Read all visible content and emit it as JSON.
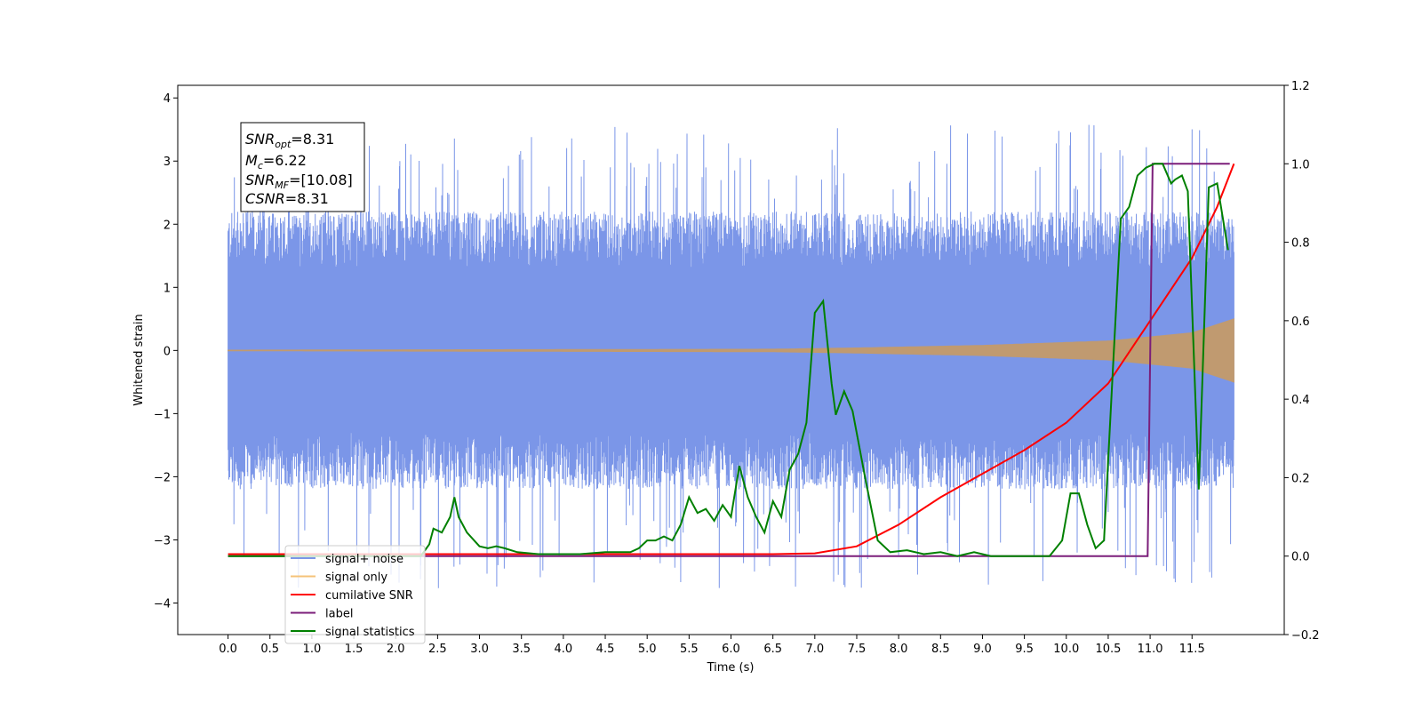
{
  "chart_data": {
    "type": "line",
    "xlabel": "Time (s)",
    "ylabel": "Whitened strain",
    "xlim": [
      -0.6,
      12.6
    ],
    "ylim": [
      -4.5,
      4.2
    ],
    "y2lim": [
      -0.2,
      1.2
    ],
    "x_ticks": [
      "0.0",
      "0.5",
      "1.0",
      "1.5",
      "2.0",
      "2.5",
      "3.0",
      "3.5",
      "4.0",
      "4.5",
      "5.0",
      "5.5",
      "6.0",
      "6.5",
      "7.0",
      "7.5",
      "8.0",
      "8.5",
      "9.0",
      "9.5",
      "10.0",
      "10.5",
      "11.0",
      "11.5"
    ],
    "y_ticks": [
      "−4",
      "−3",
      "−2",
      "−1",
      "0",
      "1",
      "2",
      "3",
      "4"
    ],
    "y2_ticks": [
      "−0.2",
      "0.0",
      "0.2",
      "0.4",
      "0.6",
      "0.8",
      "1.0",
      "1.2"
    ],
    "grid": false,
    "legend_position": "lower-left",
    "stats_box": {
      "lines": [
        {
          "main": "SNR",
          "sub": "opt",
          "rest": "=8.31"
        },
        {
          "main": "M",
          "sub": "c",
          "rest": "=6.22"
        },
        {
          "main": "SNR",
          "sub": "MF",
          "rest": "=[10.08]"
        },
        {
          "main": "CSNR",
          "sub": "",
          "rest": "=8.31"
        }
      ]
    },
    "series": [
      {
        "name": "signal+ noise",
        "color": "#7b96e8",
        "axis": "left",
        "style": "noise band, roughly ±1.5 envelope with spikes up to ±4",
        "duration": 12.0
      },
      {
        "name": "signal only",
        "color": "#c09a70",
        "axis": "left",
        "style": "chirp with growing amplitude",
        "amplitude": [
          [
            0,
            0.005
          ],
          [
            6.5,
            0.02
          ],
          [
            7.5,
            0.04
          ],
          [
            9.0,
            0.08
          ],
          [
            10.5,
            0.15
          ],
          [
            11.5,
            0.28
          ],
          [
            12.0,
            0.5
          ]
        ]
      },
      {
        "name": "cumilative SNR",
        "color": "#ff0000",
        "axis": "right",
        "points": [
          [
            0,
            0.005
          ],
          [
            6.5,
            0.005
          ],
          [
            7.0,
            0.007
          ],
          [
            7.5,
            0.025
          ],
          [
            8.0,
            0.08
          ],
          [
            8.5,
            0.15
          ],
          [
            9.0,
            0.21
          ],
          [
            9.5,
            0.27
          ],
          [
            10.0,
            0.34
          ],
          [
            10.5,
            0.44
          ],
          [
            11.0,
            0.6
          ],
          [
            11.5,
            0.76
          ],
          [
            11.8,
            0.89
          ],
          [
            12.0,
            1.0
          ]
        ]
      },
      {
        "name": "label",
        "color": "#7b1e7a",
        "axis": "right",
        "points": [
          [
            0,
            0
          ],
          [
            10.97,
            0
          ],
          [
            11.03,
            1.0
          ],
          [
            11.95,
            1.0
          ]
        ]
      },
      {
        "name": "signal statistics",
        "color": "#008000",
        "axis": "right",
        "points": [
          [
            0,
            0.0
          ],
          [
            2.3,
            0.0
          ],
          [
            2.4,
            0.03
          ],
          [
            2.45,
            0.07
          ],
          [
            2.55,
            0.06
          ],
          [
            2.65,
            0.1
          ],
          [
            2.7,
            0.15
          ],
          [
            2.75,
            0.1
          ],
          [
            2.85,
            0.06
          ],
          [
            3.0,
            0.025
          ],
          [
            3.1,
            0.02
          ],
          [
            3.2,
            0.025
          ],
          [
            3.3,
            0.02
          ],
          [
            3.45,
            0.01
          ],
          [
            3.7,
            0.005
          ],
          [
            4.2,
            0.005
          ],
          [
            4.5,
            0.01
          ],
          [
            4.8,
            0.01
          ],
          [
            4.9,
            0.02
          ],
          [
            5.0,
            0.04
          ],
          [
            5.1,
            0.04
          ],
          [
            5.2,
            0.05
          ],
          [
            5.3,
            0.04
          ],
          [
            5.4,
            0.08
          ],
          [
            5.5,
            0.15
          ],
          [
            5.6,
            0.11
          ],
          [
            5.7,
            0.12
          ],
          [
            5.8,
            0.09
          ],
          [
            5.9,
            0.13
          ],
          [
            6.0,
            0.1
          ],
          [
            6.1,
            0.23
          ],
          [
            6.2,
            0.15
          ],
          [
            6.3,
            0.1
          ],
          [
            6.4,
            0.06
          ],
          [
            6.5,
            0.14
          ],
          [
            6.6,
            0.1
          ],
          [
            6.7,
            0.22
          ],
          [
            6.8,
            0.26
          ],
          [
            6.9,
            0.34
          ],
          [
            7.0,
            0.62
          ],
          [
            7.1,
            0.65
          ],
          [
            7.2,
            0.44
          ],
          [
            7.25,
            0.36
          ],
          [
            7.35,
            0.42
          ],
          [
            7.45,
            0.37
          ],
          [
            7.6,
            0.2
          ],
          [
            7.75,
            0.04
          ],
          [
            7.9,
            0.01
          ],
          [
            8.1,
            0.015
          ],
          [
            8.3,
            0.005
          ],
          [
            8.5,
            0.01
          ],
          [
            8.7,
            0.0
          ],
          [
            8.9,
            0.01
          ],
          [
            9.1,
            0.0
          ],
          [
            9.8,
            0.0
          ],
          [
            9.95,
            0.04
          ],
          [
            10.05,
            0.16
          ],
          [
            10.15,
            0.16
          ],
          [
            10.25,
            0.08
          ],
          [
            10.35,
            0.02
          ],
          [
            10.45,
            0.04
          ],
          [
            10.55,
            0.45
          ],
          [
            10.65,
            0.86
          ],
          [
            10.75,
            0.89
          ],
          [
            10.85,
            0.97
          ],
          [
            10.95,
            0.99
          ],
          [
            11.05,
            1.0
          ],
          [
            11.15,
            1.0
          ],
          [
            11.25,
            0.95
          ],
          [
            11.3,
            0.96
          ],
          [
            11.38,
            0.97
          ],
          [
            11.45,
            0.93
          ],
          [
            11.58,
            0.17
          ],
          [
            11.7,
            0.94
          ],
          [
            11.8,
            0.95
          ],
          [
            11.93,
            0.78
          ]
        ]
      }
    ]
  }
}
